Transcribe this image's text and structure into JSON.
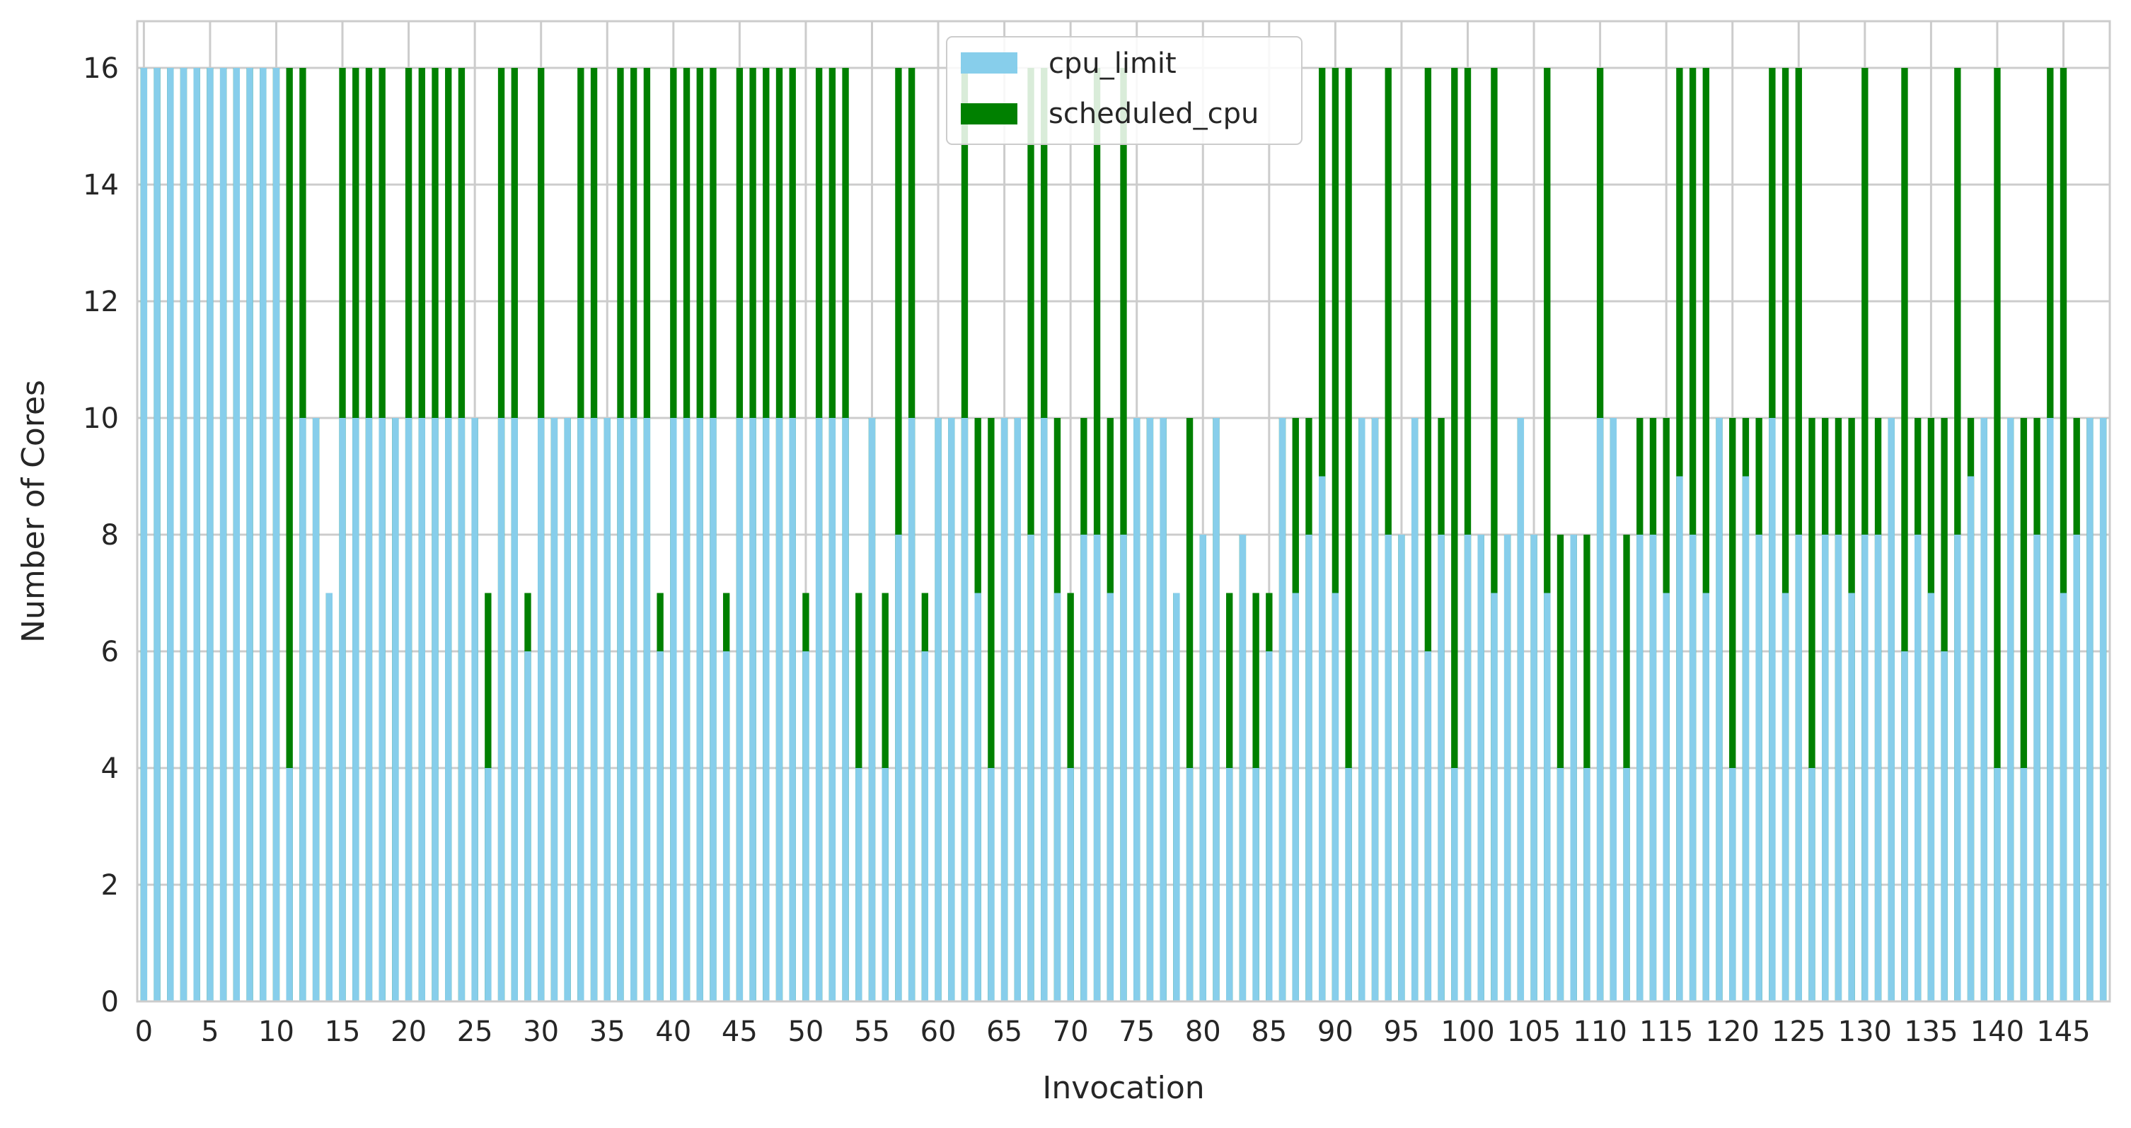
{
  "chart_data": {
    "type": "bar",
    "stacked": false,
    "title": "",
    "xlabel": "Invocation",
    "ylabel": "Number of Cores",
    "ylim": [
      0,
      16.8
    ],
    "yticks": [
      0,
      2,
      4,
      6,
      8,
      10,
      12,
      14,
      16
    ],
    "xtick_step": 5,
    "grid": true,
    "legend_position": "top-center",
    "colors": {
      "cpu_limit": "#87ceeb",
      "scheduled_cpu": "#008000",
      "grid": "#cccccc",
      "spine": "#cccccc"
    },
    "x": [
      0,
      1,
      2,
      3,
      4,
      5,
      6,
      7,
      8,
      9,
      10,
      11,
      12,
      13,
      14,
      15,
      16,
      17,
      18,
      19,
      20,
      21,
      22,
      23,
      24,
      25,
      26,
      27,
      28,
      29,
      30,
      31,
      32,
      33,
      34,
      35,
      36,
      37,
      38,
      39,
      40,
      41,
      42,
      43,
      44,
      45,
      46,
      47,
      48,
      49,
      50,
      51,
      52,
      53,
      54,
      55,
      56,
      57,
      58,
      59,
      60,
      61,
      62,
      63,
      64,
      65,
      66,
      67,
      68,
      69,
      70,
      71,
      72,
      73,
      74,
      75,
      76,
      77,
      78,
      79,
      80,
      81,
      82,
      83,
      84,
      85,
      86,
      87,
      88,
      89,
      90,
      91,
      92,
      93,
      94,
      95,
      96,
      97,
      98,
      99,
      100,
      101,
      102,
      103,
      104,
      105,
      106,
      107,
      108,
      109,
      110,
      111,
      112,
      113,
      114,
      115,
      116,
      117,
      118,
      119,
      120,
      121,
      122,
      123,
      124,
      125,
      126,
      127,
      128,
      129,
      130,
      131,
      132,
      133,
      134,
      135,
      136,
      137,
      138,
      139,
      140,
      141,
      142,
      143,
      144,
      145,
      146,
      147,
      148
    ],
    "series": [
      {
        "name": "cpu_limit",
        "values": [
          16,
          16,
          16,
          16,
          16,
          16,
          16,
          16,
          16,
          16,
          16,
          4,
          10,
          10,
          7,
          10,
          10,
          10,
          10,
          10,
          10,
          10,
          10,
          10,
          10,
          10,
          4,
          10,
          10,
          6,
          10,
          10,
          10,
          10,
          10,
          10,
          10,
          10,
          10,
          6,
          10,
          10,
          10,
          10,
          6,
          10,
          10,
          10,
          10,
          10,
          6,
          10,
          10,
          10,
          4,
          10,
          4,
          8,
          10,
          6,
          10,
          10,
          10,
          7,
          4,
          10,
          10,
          8,
          10,
          7,
          4,
          8,
          8,
          7,
          8,
          10,
          10,
          10,
          7,
          4,
          8,
          10,
          4,
          8,
          4,
          6,
          10,
          7,
          8,
          9,
          7,
          4,
          10,
          10,
          8,
          8,
          10,
          6,
          8,
          4,
          8,
          8,
          7,
          8,
          10,
          8,
          7,
          4,
          8,
          4,
          10,
          10,
          4,
          8,
          8,
          7,
          9,
          8,
          7,
          10,
          4,
          9,
          8,
          10,
          7,
          8,
          4,
          8,
          8,
          7,
          8,
          8,
          10,
          6,
          8,
          7,
          6,
          8,
          9,
          10,
          4,
          10,
          4,
          8,
          10,
          7,
          8,
          10,
          10
        ]
      },
      {
        "name": "scheduled_cpu",
        "values": [
          16,
          16,
          16,
          16,
          16,
          16,
          16,
          16,
          16,
          16,
          16,
          16,
          16,
          10,
          7,
          16,
          16,
          16,
          16,
          10,
          16,
          16,
          16,
          16,
          16,
          10,
          7,
          16,
          16,
          7,
          16,
          10,
          10,
          16,
          16,
          10,
          16,
          16,
          16,
          7,
          16,
          16,
          16,
          16,
          7,
          16,
          16,
          16,
          16,
          16,
          7,
          16,
          16,
          16,
          7,
          10,
          7,
          16,
          16,
          7,
          10,
          10,
          16,
          10,
          10,
          10,
          10,
          16,
          16,
          10,
          7,
          10,
          16,
          10,
          16,
          10,
          10,
          10,
          7,
          10,
          8,
          10,
          7,
          8,
          7,
          7,
          10,
          10,
          10,
          16,
          16,
          16,
          10,
          10,
          16,
          8,
          10,
          16,
          10,
          16,
          16,
          8,
          16,
          8,
          10,
          8,
          16,
          8,
          8,
          8,
          16,
          10,
          8,
          10,
          10,
          10,
          16,
          16,
          16,
          10,
          10,
          10,
          10,
          16,
          16,
          16,
          10,
          10,
          10,
          10,
          16,
          10,
          10,
          16,
          10,
          10,
          10,
          16,
          10,
          10,
          16,
          10,
          10,
          10,
          16,
          16,
          10,
          10,
          10
        ]
      }
    ]
  }
}
